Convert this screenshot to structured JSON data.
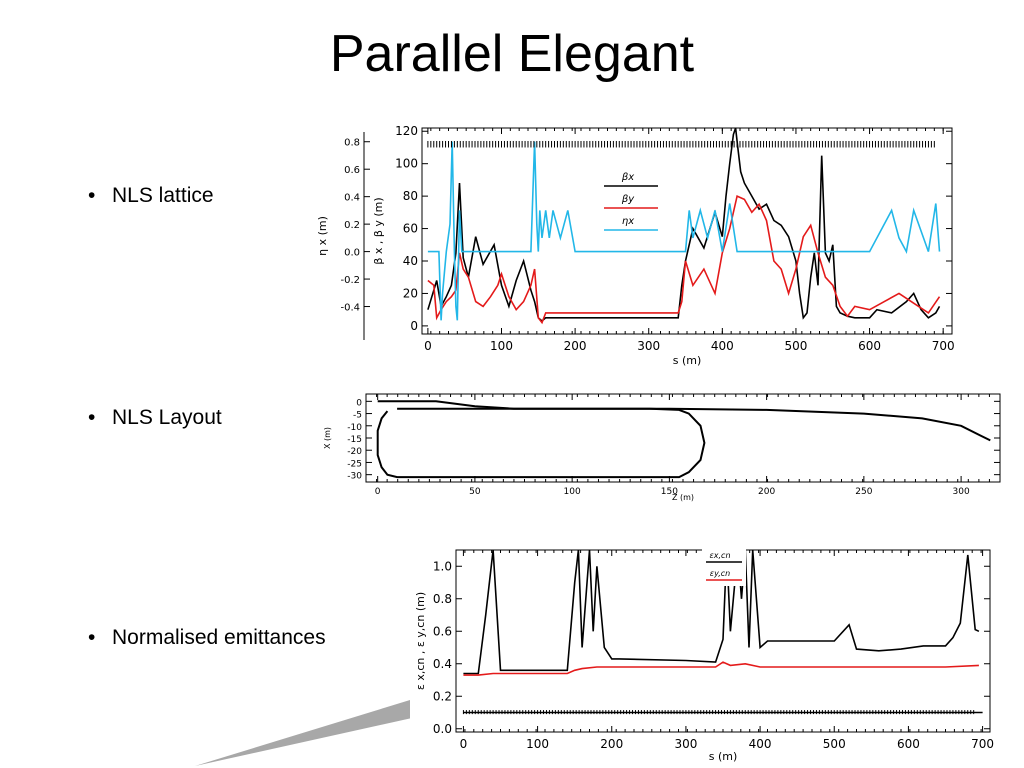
{
  "slide": {
    "title": "Parallel Elegant",
    "bullets": [
      "NLS lattice",
      "NLS Layout",
      "Normalised emittances"
    ]
  },
  "colors": {
    "black": "#000000",
    "red": "#e41a1a",
    "cyan": "#22b7e8",
    "swoosh": "#a8a8a8"
  },
  "chart_data": [
    {
      "type": "line",
      "xlabel": "s (m)",
      "ylabel": "β x , β y (m)",
      "ylabel2": "η x (m)",
      "xlim": [
        -8,
        712
      ],
      "ylim": [
        -5,
        122
      ],
      "ylim2": [
        -0.6,
        0.9
      ],
      "xticks": [
        "0",
        "100",
        "200",
        "300",
        "400",
        "500",
        "600",
        "700"
      ],
      "yticks": [
        "0",
        "20",
        "40",
        "60",
        "80",
        "100",
        "120"
      ],
      "yticks2": [
        "0.8",
        "0.6",
        "0.4",
        "0.2",
        "0.0",
        "-0.2",
        "-0.4"
      ],
      "legend": [
        "βx",
        "βy",
        "ηx"
      ],
      "series": [
        {
          "name": "βx",
          "x": [
            0,
            8,
            12,
            18,
            25,
            32,
            38,
            43,
            48,
            55,
            65,
            75,
            90,
            100,
            110,
            120,
            130,
            140,
            145,
            150,
            155,
            160,
            200,
            240,
            280,
            320,
            340,
            345,
            350,
            360,
            375,
            390,
            400,
            405,
            410,
            415,
            418,
            421,
            425,
            430,
            440,
            450,
            460,
            470,
            480,
            490,
            500,
            505,
            510,
            515,
            520,
            525,
            530,
            535,
            540,
            545,
            550,
            555,
            560,
            570,
            580,
            600,
            610,
            630,
            650,
            660,
            670,
            680,
            690,
            695
          ],
          "y": [
            10,
            22,
            28,
            12,
            18,
            25,
            45,
            88,
            42,
            30,
            55,
            38,
            50,
            25,
            12,
            28,
            40,
            22,
            15,
            5,
            3,
            5,
            5,
            5,
            5,
            5,
            5,
            25,
            40,
            60,
            48,
            70,
            55,
            80,
            100,
            118,
            122,
            110,
            95,
            88,
            80,
            72,
            75,
            65,
            62,
            55,
            40,
            20,
            5,
            8,
            30,
            45,
            25,
            105,
            45,
            40,
            50,
            12,
            8,
            6,
            5,
            5,
            10,
            8,
            15,
            20,
            10,
            5,
            8,
            12
          ]
        },
        {
          "name": "βy",
          "x": [
            0,
            8,
            12,
            18,
            25,
            32,
            38,
            43,
            48,
            55,
            65,
            75,
            85,
            95,
            100,
            110,
            120,
            130,
            140,
            145,
            150,
            155,
            160,
            200,
            240,
            280,
            320,
            340,
            345,
            350,
            360,
            375,
            390,
            400,
            410,
            420,
            430,
            440,
            450,
            460,
            470,
            480,
            490,
            500,
            510,
            520,
            530,
            540,
            550,
            560,
            570,
            580,
            600,
            620,
            640,
            660,
            680,
            695
          ],
          "y": [
            28,
            25,
            5,
            10,
            15,
            18,
            22,
            45,
            35,
            30,
            15,
            12,
            18,
            25,
            32,
            18,
            10,
            15,
            25,
            35,
            5,
            2,
            8,
            8,
            8,
            8,
            8,
            8,
            15,
            40,
            25,
            35,
            20,
            45,
            60,
            80,
            78,
            70,
            75,
            65,
            40,
            35,
            20,
            35,
            55,
            62,
            45,
            30,
            25,
            12,
            6,
            12,
            10,
            15,
            20,
            14,
            8,
            18
          ]
        },
        {
          "name": "ηx",
          "x": [
            0,
            10,
            15,
            18,
            20,
            25,
            30,
            33,
            36,
            38,
            40,
            43,
            46,
            50,
            60,
            80,
            100,
            120,
            140,
            145,
            148,
            150,
            152,
            155,
            160,
            165,
            170,
            180,
            190,
            200,
            210,
            300,
            350,
            355,
            360,
            370,
            380,
            390,
            400,
            410,
            420,
            430,
            440,
            450,
            500,
            550,
            600,
            630,
            640,
            650,
            660,
            680,
            690,
            695
          ],
          "y": [
            0,
            0,
            0,
            -0.5,
            -0.3,
            0,
            0.2,
            0.8,
            0,
            -0.4,
            -0.5,
            0.3,
            0,
            0,
            0,
            0,
            0,
            0,
            0,
            0.8,
            0.2,
            0,
            0.3,
            0.1,
            0.3,
            0.1,
            0.3,
            0.1,
            0.3,
            0,
            0,
            0,
            0,
            0.3,
            0.1,
            0.3,
            0.1,
            0.3,
            0,
            0.35,
            0,
            0,
            0,
            0,
            0,
            0,
            0,
            0.3,
            0.1,
            0,
            0.3,
            0,
            0.35,
            0
          ]
        }
      ]
    },
    {
      "type": "line",
      "xlabel": "Z (m)",
      "ylabel": "X (m)",
      "xlim": [
        -6,
        320
      ],
      "ylim": [
        -33,
        3
      ],
      "xticks": [
        "0",
        "50",
        "100",
        "150",
        "200",
        "250",
        "300"
      ],
      "yticks": [
        "0",
        "-5",
        "-10",
        "-15",
        "-20",
        "-25",
        "-30"
      ],
      "series": [
        {
          "name": "",
          "x": [
            0,
            30,
            50,
            70,
            100,
            150,
            200,
            250,
            280,
            300,
            310,
            315
          ],
          "y": [
            0,
            0,
            -2,
            -3,
            -3,
            -3,
            -3.5,
            -5,
            -7,
            -10,
            -14,
            -16
          ]
        },
        {
          "name": "",
          "x": [
            10,
            140,
            155,
            160,
            166,
            168,
            166,
            160,
            155,
            140,
            10,
            5,
            2,
            0,
            0,
            0,
            2,
            5
          ],
          "y": [
            -3,
            -3,
            -3.5,
            -5,
            -10,
            -17,
            -24,
            -29,
            -31,
            -31,
            -31,
            -30,
            -27,
            -22,
            -17,
            -12,
            -7,
            -4
          ]
        }
      ]
    },
    {
      "type": "line",
      "xlabel": "s (m)",
      "ylabel": "ε x,cn , ε y,cn (m)",
      "xlim": [
        -10,
        710
      ],
      "ylim": [
        -0.02,
        1.1
      ],
      "xticks": [
        "0",
        "100",
        "200",
        "300",
        "400",
        "500",
        "600",
        "700"
      ],
      "yticks": [
        "1.0",
        "0.8",
        "0.6",
        "0.4",
        "0.2",
        "0.0"
      ],
      "legend": [
        "εx,cn",
        "εy,cn"
      ],
      "series": [
        {
          "name": "εx,cn",
          "x": [
            0,
            20,
            30,
            40,
            50,
            140,
            150,
            155,
            160,
            170,
            175,
            180,
            190,
            200,
            210,
            300,
            340,
            350,
            355,
            360,
            370,
            375,
            380,
            385,
            390,
            400,
            410,
            500,
            520,
            530,
            560,
            590,
            620,
            650,
            660,
            670,
            680,
            690,
            695
          ],
          "y": [
            0.34,
            0.34,
            0.7,
            1.1,
            0.36,
            0.36,
            0.9,
            1.1,
            0.5,
            1.1,
            0.6,
            1.0,
            0.5,
            0.43,
            0.43,
            0.42,
            0.41,
            0.55,
            1.1,
            0.6,
            1.1,
            0.8,
            1.1,
            0.5,
            1.1,
            0.5,
            0.54,
            0.54,
            0.64,
            0.49,
            0.48,
            0.49,
            0.51,
            0.51,
            0.56,
            0.65,
            1.07,
            0.61,
            0.6
          ]
        },
        {
          "name": "εy,cn",
          "x": [
            0,
            20,
            40,
            60,
            100,
            140,
            150,
            160,
            180,
            200,
            250,
            300,
            340,
            350,
            360,
            380,
            400,
            450,
            500,
            550,
            600,
            650,
            695
          ],
          "y": [
            0.33,
            0.33,
            0.34,
            0.34,
            0.34,
            0.34,
            0.36,
            0.37,
            0.38,
            0.38,
            0.38,
            0.38,
            0.38,
            0.41,
            0.39,
            0.4,
            0.38,
            0.38,
            0.38,
            0.38,
            0.38,
            0.38,
            0.39
          ]
        },
        {
          "name": "",
          "x": [
            0,
            700
          ],
          "y": [
            0.1,
            0.1
          ]
        }
      ]
    }
  ]
}
